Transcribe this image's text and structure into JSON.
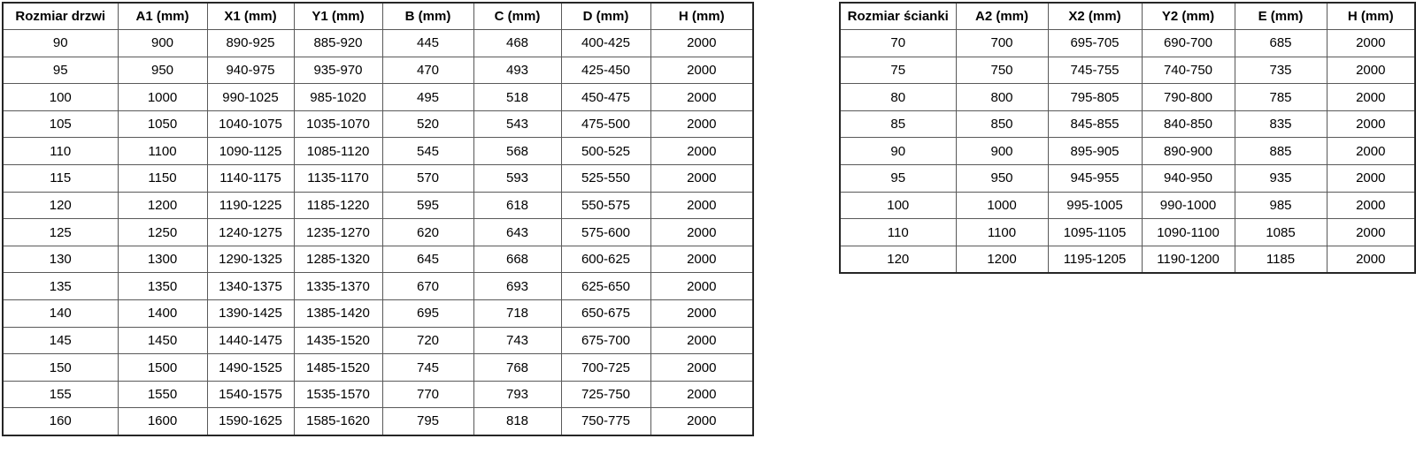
{
  "door_table": {
    "headers": [
      "Rozmiar drzwi",
      "A1 (mm)",
      "X1 (mm)",
      "Y1 (mm)",
      "B (mm)",
      "C (mm)",
      "D (mm)",
      "H (mm)"
    ],
    "rows": [
      [
        "90",
        "900",
        "890-925",
        "885-920",
        "445",
        "468",
        "400-425",
        "2000"
      ],
      [
        "95",
        "950",
        "940-975",
        "935-970",
        "470",
        "493",
        "425-450",
        "2000"
      ],
      [
        "100",
        "1000",
        "990-1025",
        "985-1020",
        "495",
        "518",
        "450-475",
        "2000"
      ],
      [
        "105",
        "1050",
        "1040-1075",
        "1035-1070",
        "520",
        "543",
        "475-500",
        "2000"
      ],
      [
        "110",
        "1100",
        "1090-1125",
        "1085-1120",
        "545",
        "568",
        "500-525",
        "2000"
      ],
      [
        "115",
        "1150",
        "1140-1175",
        "1135-1170",
        "570",
        "593",
        "525-550",
        "2000"
      ],
      [
        "120",
        "1200",
        "1190-1225",
        "1185-1220",
        "595",
        "618",
        "550-575",
        "2000"
      ],
      [
        "125",
        "1250",
        "1240-1275",
        "1235-1270",
        "620",
        "643",
        "575-600",
        "2000"
      ],
      [
        "130",
        "1300",
        "1290-1325",
        "1285-1320",
        "645",
        "668",
        "600-625",
        "2000"
      ],
      [
        "135",
        "1350",
        "1340-1375",
        "1335-1370",
        "670",
        "693",
        "625-650",
        "2000"
      ],
      [
        "140",
        "1400",
        "1390-1425",
        "1385-1420",
        "695",
        "718",
        "650-675",
        "2000"
      ],
      [
        "145",
        "1450",
        "1440-1475",
        "1435-1520",
        "720",
        "743",
        "675-700",
        "2000"
      ],
      [
        "150",
        "1500",
        "1490-1525",
        "1485-1520",
        "745",
        "768",
        "700-725",
        "2000"
      ],
      [
        "155",
        "1550",
        "1540-1575",
        "1535-1570",
        "770",
        "793",
        "725-750",
        "2000"
      ],
      [
        "160",
        "1600",
        "1590-1625",
        "1585-1620",
        "795",
        "818",
        "750-775",
        "2000"
      ]
    ]
  },
  "wall_table": {
    "headers": [
      "Rozmiar ścianki",
      "A2 (mm)",
      "X2 (mm)",
      "Y2 (mm)",
      "E (mm)",
      "H (mm)"
    ],
    "rows": [
      [
        "70",
        "700",
        "695-705",
        "690-700",
        "685",
        "2000"
      ],
      [
        "75",
        "750",
        "745-755",
        "740-750",
        "735",
        "2000"
      ],
      [
        "80",
        "800",
        "795-805",
        "790-800",
        "785",
        "2000"
      ],
      [
        "85",
        "850",
        "845-855",
        "840-850",
        "835",
        "2000"
      ],
      [
        "90",
        "900",
        "895-905",
        "890-900",
        "885",
        "2000"
      ],
      [
        "95",
        "950",
        "945-955",
        "940-950",
        "935",
        "2000"
      ],
      [
        "100",
        "1000",
        "995-1005",
        "990-1000",
        "985",
        "2000"
      ],
      [
        "110",
        "1100",
        "1095-1105",
        "1090-1100",
        "1085",
        "2000"
      ],
      [
        "120",
        "1200",
        "1195-1205",
        "1190-1200",
        "1185",
        "2000"
      ]
    ]
  },
  "colors": {
    "background": "#ffffff",
    "text": "#000000",
    "grid_border": "#595959",
    "outer_border": "#262626"
  }
}
